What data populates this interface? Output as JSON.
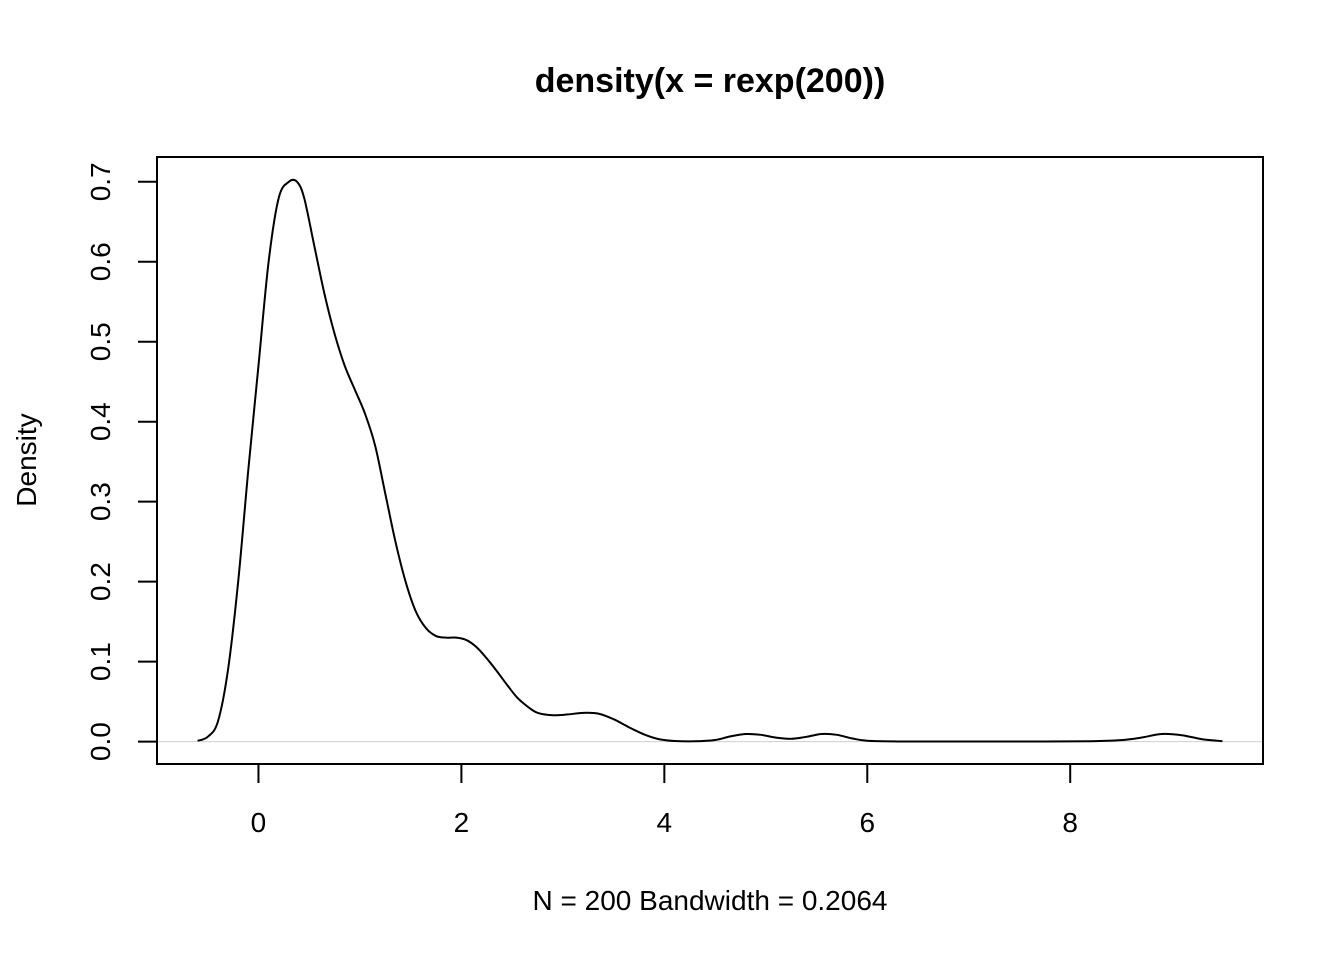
{
  "chart_data": {
    "type": "line",
    "title": "density(x = rexp(200))",
    "xlabel": "N = 200   Bandwidth = 0.2064",
    "ylabel": "Density",
    "xlim": [
      -1.0,
      9.9
    ],
    "ylim": [
      -0.028,
      0.731
    ],
    "x_ticks": [
      "0",
      "2",
      "4",
      "6",
      "8"
    ],
    "y_ticks": [
      "0.0",
      "0.1",
      "0.2",
      "0.3",
      "0.4",
      "0.5",
      "0.6",
      "0.7"
    ],
    "grid": false,
    "series": [
      {
        "x": [
          -0.6,
          -0.5,
          -0.4,
          -0.3,
          -0.2,
          -0.1,
          0.0,
          0.1,
          0.2,
          0.3,
          0.38,
          0.45,
          0.55,
          0.65,
          0.75,
          0.85,
          0.95,
          1.05,
          1.15,
          1.25,
          1.35,
          1.45,
          1.55,
          1.65,
          1.75,
          1.85,
          1.95,
          2.05,
          2.15,
          2.25,
          2.35,
          2.45,
          2.55,
          2.65,
          2.75,
          2.9,
          3.05,
          3.2,
          3.35,
          3.5,
          3.65,
          3.8,
          3.95,
          4.1,
          4.3,
          4.5,
          4.65,
          4.8,
          4.95,
          5.1,
          5.25,
          5.4,
          5.55,
          5.7,
          5.85,
          6.0,
          6.3,
          6.8,
          7.5,
          8.2,
          8.5,
          8.7,
          8.9,
          9.1,
          9.3,
          9.5
        ],
        "y": [
          0.001,
          0.006,
          0.025,
          0.09,
          0.2,
          0.34,
          0.47,
          0.6,
          0.68,
          0.7,
          0.7,
          0.68,
          0.62,
          0.56,
          0.51,
          0.47,
          0.44,
          0.41,
          0.37,
          0.31,
          0.25,
          0.2,
          0.163,
          0.142,
          0.132,
          0.13,
          0.13,
          0.127,
          0.118,
          0.104,
          0.088,
          0.071,
          0.055,
          0.044,
          0.036,
          0.033,
          0.034,
          0.036,
          0.035,
          0.028,
          0.018,
          0.009,
          0.003,
          0.0008,
          0.0004,
          0.002,
          0.0065,
          0.0095,
          0.0085,
          0.005,
          0.0035,
          0.006,
          0.0095,
          0.0085,
          0.004,
          0.001,
          0.0002,
          0.0001,
          0.0001,
          0.0005,
          0.0018,
          0.005,
          0.0095,
          0.008,
          0.003,
          0.0006
        ]
      }
    ]
  }
}
